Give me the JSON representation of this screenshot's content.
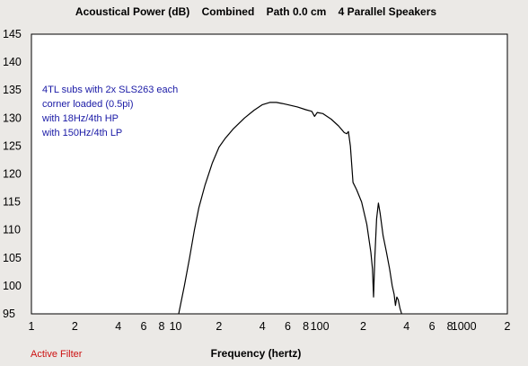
{
  "chart_data": {
    "type": "line",
    "title": "Acoustical Power (dB)    Combined    Path 0.0 cm    4 Parallel Speakers",
    "xlabel": "Frequency (hertz)",
    "ylabel": "",
    "x_scale": "log",
    "xlim": [
      1,
      2000
    ],
    "ylim": [
      95,
      145
    ],
    "grid": false,
    "y_ticks": [
      "145",
      "140",
      "135",
      "130",
      "125",
      "120",
      "115",
      "110",
      "105",
      "100",
      "95"
    ],
    "x_ticks": [
      {
        "v": 1,
        "label": "1"
      },
      {
        "v": 2,
        "label": "2"
      },
      {
        "v": 4,
        "label": "4"
      },
      {
        "v": 6,
        "label": "6"
      },
      {
        "v": 8,
        "label": "8"
      },
      {
        "v": 10,
        "label": "10"
      },
      {
        "v": 20,
        "label": "2"
      },
      {
        "v": 40,
        "label": "4"
      },
      {
        "v": 60,
        "label": "6"
      },
      {
        "v": 80,
        "label": "8"
      },
      {
        "v": 100,
        "label": "100"
      },
      {
        "v": 200,
        "label": "2"
      },
      {
        "v": 400,
        "label": "4"
      },
      {
        "v": 600,
        "label": "6"
      },
      {
        "v": 800,
        "label": "8"
      },
      {
        "v": 1000,
        "label": "1000"
      },
      {
        "v": 2000,
        "label": "2"
      }
    ],
    "annotation_lines": [
      "4TL subs with 2x SLS263 each",
      "corner loaded (0.5pi)",
      "with 18Hz/4th HP",
      "with 150Hz/4th LP"
    ],
    "series": [
      {
        "color": "#000000",
        "points": [
          [
            10.5,
            95.0
          ],
          [
            11.5,
            100.0
          ],
          [
            12.5,
            105.0
          ],
          [
            13.5,
            110.0
          ],
          [
            14.5,
            114.0
          ],
          [
            16,
            118.0
          ],
          [
            18,
            122.0
          ],
          [
            20,
            124.8
          ],
          [
            22,
            126.3
          ],
          [
            25,
            128.0
          ],
          [
            30,
            130.0
          ],
          [
            35,
            131.4
          ],
          [
            40,
            132.4
          ],
          [
            45,
            132.8
          ],
          [
            50,
            132.8
          ],
          [
            55,
            132.6
          ],
          [
            60,
            132.4
          ],
          [
            70,
            132.0
          ],
          [
            80,
            131.5
          ],
          [
            88,
            131.2
          ],
          [
            92,
            130.3
          ],
          [
            96,
            131.0
          ],
          [
            105,
            130.8
          ],
          [
            120,
            129.8
          ],
          [
            135,
            128.6
          ],
          [
            148,
            127.4
          ],
          [
            154,
            127.2
          ],
          [
            158,
            127.6
          ],
          [
            163,
            125.0
          ],
          [
            170,
            118.5
          ],
          [
            180,
            117.2
          ],
          [
            195,
            115.0
          ],
          [
            212,
            111.0
          ],
          [
            226,
            106.0
          ],
          [
            232,
            103.0
          ],
          [
            236,
            98.0
          ],
          [
            241,
            105.0
          ],
          [
            248,
            112.0
          ],
          [
            255,
            114.8
          ],
          [
            262,
            113.0
          ],
          [
            275,
            109.0
          ],
          [
            290,
            106.0
          ],
          [
            305,
            103.0
          ],
          [
            318,
            100.0
          ],
          [
            328,
            98.5
          ],
          [
            335,
            96.5
          ],
          [
            342,
            98.0
          ],
          [
            350,
            97.5
          ],
          [
            360,
            96.0
          ],
          [
            370,
            95.0
          ]
        ]
      }
    ]
  },
  "status_text": "Active Filter",
  "colors": {
    "background": "#ebe9e6",
    "plot_background": "#ffffff",
    "annotation": "#1a1aa6",
    "status": "#cc1111"
  }
}
